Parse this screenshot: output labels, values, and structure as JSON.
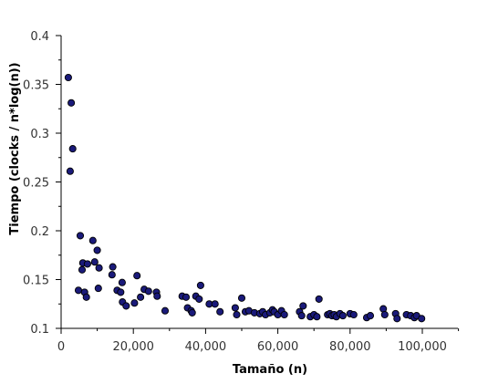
{
  "chart_data": {
    "type": "scatter",
    "title": "",
    "xlabel": "Tamaño (n)",
    "ylabel": "Tiempo (clocks / n*log(n))",
    "xlim": [
      0,
      110000
    ],
    "ylim": [
      0.1,
      0.4
    ],
    "grid": false,
    "xticks": [
      0,
      20000,
      40000,
      60000,
      80000,
      100000
    ],
    "xtick_labels": [
      "0",
      "20,000",
      "40,000",
      "60,000",
      "80,000",
      "100,000"
    ],
    "yticks": [
      0.1,
      0.15,
      0.2,
      0.25,
      0.3,
      0.35,
      0.4
    ],
    "ytick_labels": [
      "0.1",
      "0.15",
      "0.2",
      "0.25",
      "0.3",
      "0.35",
      "0.4"
    ],
    "marker_color": "#1a1a7a",
    "marker_edge": "#000000",
    "series": [
      {
        "name": "Tiempo",
        "points": [
          [
            2000,
            0.357
          ],
          [
            2800,
            0.331
          ],
          [
            2500,
            0.261
          ],
          [
            3200,
            0.284
          ],
          [
            5300,
            0.195
          ],
          [
            5800,
            0.16
          ],
          [
            6000,
            0.167
          ],
          [
            7300,
            0.166
          ],
          [
            4800,
            0.139
          ],
          [
            6500,
            0.137
          ],
          [
            7000,
            0.132
          ],
          [
            8800,
            0.19
          ],
          [
            10000,
            0.18
          ],
          [
            9300,
            0.168
          ],
          [
            10500,
            0.162
          ],
          [
            10300,
            0.141
          ],
          [
            14300,
            0.163
          ],
          [
            14100,
            0.155
          ],
          [
            15500,
            0.139
          ],
          [
            16500,
            0.137
          ],
          [
            16900,
            0.147
          ],
          [
            17000,
            0.127
          ],
          [
            18000,
            0.123
          ],
          [
            20300,
            0.126
          ],
          [
            21000,
            0.154
          ],
          [
            22000,
            0.132
          ],
          [
            23000,
            0.14
          ],
          [
            24200,
            0.138
          ],
          [
            26400,
            0.137
          ],
          [
            26600,
            0.133
          ],
          [
            28800,
            0.118
          ],
          [
            33500,
            0.133
          ],
          [
            34600,
            0.132
          ],
          [
            35000,
            0.121
          ],
          [
            36000,
            0.118
          ],
          [
            36300,
            0.116
          ],
          [
            37300,
            0.133
          ],
          [
            38200,
            0.13
          ],
          [
            38600,
            0.144
          ],
          [
            41000,
            0.125
          ],
          [
            42600,
            0.125
          ],
          [
            44000,
            0.117
          ],
          [
            48200,
            0.121
          ],
          [
            48600,
            0.114
          ],
          [
            50000,
            0.131
          ],
          [
            51000,
            0.117
          ],
          [
            52000,
            0.118
          ],
          [
            53500,
            0.116
          ],
          [
            55000,
            0.115
          ],
          [
            55800,
            0.117
          ],
          [
            56600,
            0.114
          ],
          [
            57800,
            0.116
          ],
          [
            58500,
            0.119
          ],
          [
            59000,
            0.117
          ],
          [
            60000,
            0.114
          ],
          [
            61000,
            0.118
          ],
          [
            61800,
            0.114
          ],
          [
            66000,
            0.117
          ],
          [
            66600,
            0.113
          ],
          [
            67000,
            0.123
          ],
          [
            69000,
            0.112
          ],
          [
            70000,
            0.114
          ],
          [
            70800,
            0.112
          ],
          [
            71400,
            0.13
          ],
          [
            73800,
            0.114
          ],
          [
            74400,
            0.115
          ],
          [
            75000,
            0.113
          ],
          [
            75600,
            0.114
          ],
          [
            76200,
            0.112
          ],
          [
            77200,
            0.115
          ],
          [
            78000,
            0.113
          ],
          [
            80000,
            0.115
          ],
          [
            81000,
            0.114
          ],
          [
            84600,
            0.111
          ],
          [
            85600,
            0.113
          ],
          [
            89200,
            0.12
          ],
          [
            89600,
            0.114
          ],
          [
            92600,
            0.115
          ],
          [
            93000,
            0.11
          ],
          [
            95600,
            0.114
          ],
          [
            96800,
            0.113
          ],
          [
            97800,
            0.111
          ],
          [
            98400,
            0.113
          ],
          [
            99800,
            0.11
          ]
        ]
      }
    ]
  }
}
